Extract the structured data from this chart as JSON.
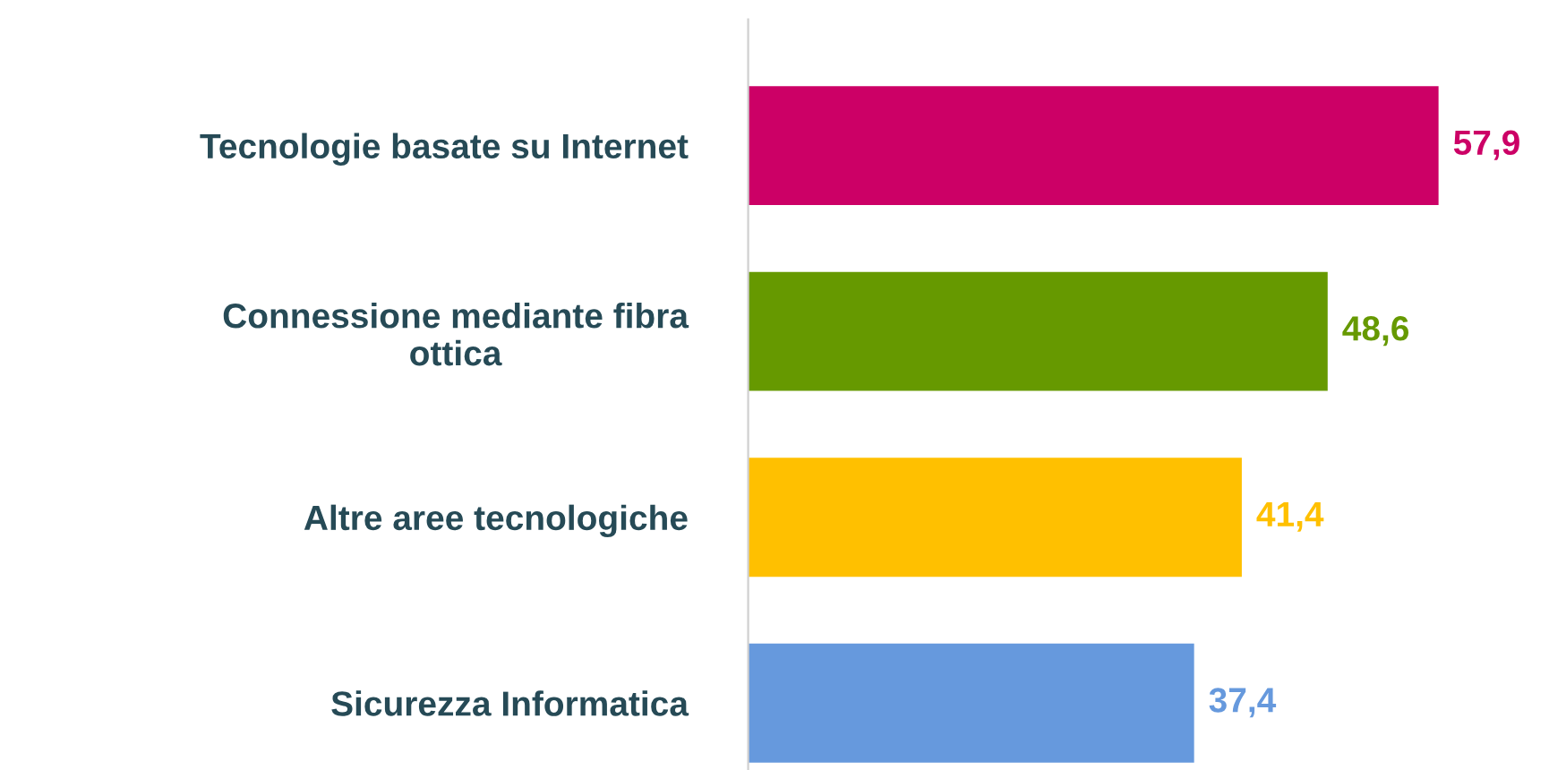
{
  "chart_data": {
    "type": "bar",
    "orientation": "horizontal",
    "categories": [
      "Tecnologie basate su Internet",
      "Connessione mediante fibra\nottica",
      "Altre aree tecnologiche",
      "Sicurezza Informatica"
    ],
    "values": [
      57.9,
      48.6,
      41.4,
      37.4
    ],
    "colors": [
      "#cc0066",
      "#669900",
      "#ffc000",
      "#6699dd"
    ],
    "value_labels": [
      "57,9",
      "48,6",
      "41,4",
      "37,4"
    ],
    "tick_labels": "y",
    "grid": false,
    "legend": false
  }
}
